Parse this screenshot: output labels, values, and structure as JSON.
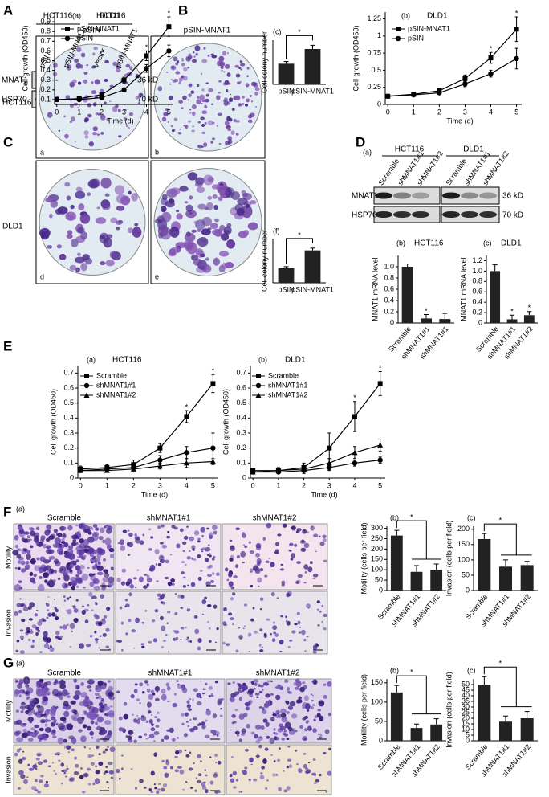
{
  "figure": {
    "panel_letters": [
      "A",
      "B",
      "C",
      "D",
      "E",
      "F",
      "G"
    ],
    "blot_a": {
      "groups": [
        "HCT116",
        "DLD1"
      ],
      "lanes": [
        "pSIN",
        "pSIN-MNAT1",
        "Vector",
        "pSIN-MNAT1"
      ],
      "rows": [
        "MNAT1",
        "HSP70"
      ],
      "sizes": [
        "36 kD",
        "70 kD"
      ]
    },
    "colony": {
      "columns": [
        "pSIN",
        "pSIN-MNAT1"
      ],
      "rows": [
        "HCT116",
        "DLD1"
      ],
      "plate_labels": [
        "a",
        "b",
        "d",
        "e"
      ]
    },
    "blot_d": {
      "label": "(a)",
      "groups": [
        "HCT116",
        "DLD1"
      ],
      "lanes": [
        "Scramble",
        "shMNAT1#1",
        "shMNAT1#2",
        "Scramble",
        "shMNAT1#1",
        "shMNAT1#2"
      ],
      "rows": [
        "MNAT1",
        "HSP70"
      ],
      "sizes": [
        "36 kD",
        "70 kD"
      ]
    },
    "micro_f": {
      "label": "(a)",
      "columns": [
        "Scramble",
        "shMNAT1#1",
        "shMNAT1#2"
      ],
      "rows": [
        "Motility",
        "Invasion"
      ]
    },
    "micro_g": {
      "label": "(a)",
      "columns": [
        "Scramble",
        "shMNAT1#1",
        "shMNAT1#2"
      ],
      "rows": [
        "Motility",
        "Invasion"
      ]
    }
  },
  "chart_data": [
    {
      "type": "line",
      "title": "(a)",
      "subtitle": "HCT116",
      "xlabel": "Time (d)",
      "ylabel": "Cell growth (OD450)",
      "x": [
        0,
        1,
        2,
        3,
        4,
        5
      ],
      "xlim": [
        -0.1,
        5.2
      ],
      "xticks": [
        0,
        1,
        2,
        3,
        4,
        5
      ],
      "ylim": [
        0.05,
        1.0
      ],
      "yticks": [
        0.1,
        0.2,
        0.3,
        0.4,
        0.5,
        0.6,
        0.7,
        0.8,
        0.9
      ],
      "series": [
        {
          "name": "pSIN-MNAT1",
          "color": "#000000",
          "marker": "square",
          "values": [
            0.1,
            0.11,
            0.15,
            0.3,
            0.55,
            0.85
          ],
          "errors": [
            0.01,
            0.02,
            0.02,
            0.03,
            0.05,
            0.1
          ]
        },
        {
          "name": "pSIN",
          "color": "#000000",
          "marker": "circle",
          "values": [
            0.1,
            0.1,
            0.12,
            0.2,
            0.42,
            0.6
          ],
          "errors": [
            0.01,
            0.01,
            0.02,
            0.02,
            0.04,
            0.06
          ]
        }
      ],
      "annotations": [
        "*",
        "*"
      ]
    },
    {
      "type": "line",
      "title": "(b)",
      "subtitle": "DLD1",
      "xlabel": "Time (d)",
      "ylabel": "Cell growth (OD450)",
      "x": [
        0,
        1,
        2,
        3,
        4,
        5
      ],
      "xlim": [
        -0.1,
        5.2
      ],
      "xticks": [
        0,
        1,
        2,
        3,
        4,
        5
      ],
      "ylim": [
        0,
        1.35
      ],
      "yticks": [
        0,
        0.25,
        0.5,
        0.75,
        1,
        1.25
      ],
      "series": [
        {
          "name": "pSIN-MNAT1",
          "color": "#000000",
          "marker": "square",
          "values": [
            0.12,
            0.15,
            0.2,
            0.38,
            0.68,
            1.1
          ],
          "errors": [
            0.02,
            0.02,
            0.03,
            0.05,
            0.08,
            0.18
          ]
        },
        {
          "name": "pSIN",
          "color": "#000000",
          "marker": "circle",
          "values": [
            0.12,
            0.14,
            0.17,
            0.3,
            0.45,
            0.67
          ],
          "errors": [
            0.02,
            0.02,
            0.02,
            0.04,
            0.05,
            0.15
          ]
        }
      ],
      "annotations": [
        "*",
        "*"
      ]
    },
    {
      "type": "bar",
      "title": "(c)",
      "ylabel": "Cell colony number",
      "categories": [
        "pSIN",
        "pSIN-MNAT1"
      ],
      "values": [
        28,
        48
      ],
      "errors": [
        3,
        5
      ],
      "color": "#222222",
      "ylim": [
        0,
        60
      ],
      "yticks": [],
      "annotations": [
        "*"
      ]
    },
    {
      "type": "bar",
      "title": "(f)",
      "ylabel": "Cell colony number",
      "categories": [
        "pSIN",
        "pSIN-MNAT1"
      ],
      "values": [
        20,
        44
      ],
      "errors": [
        2,
        3
      ],
      "color": "#222222",
      "ylim": [
        0,
        60
      ],
      "yticks": [],
      "annotations": [
        "*"
      ]
    },
    {
      "type": "bar",
      "title": "(b)",
      "subtitle": "HCT116",
      "ylabel": "MNAT1 mRNA level",
      "categories": [
        "Scramble",
        "shMNAT1#1",
        "shMNAT1#1"
      ],
      "values": [
        1.0,
        0.08,
        0.07
      ],
      "errors": [
        0.05,
        0.07,
        0.1
      ],
      "color": "#222222",
      "ylim": [
        0,
        1.2
      ],
      "yticks": [
        0,
        0.2,
        0.4,
        0.6,
        0.8,
        {
          "value": 1,
          "label": "1.0"
        }
      ],
      "annotations": [
        "*"
      ]
    },
    {
      "type": "bar",
      "title": "(c)",
      "subtitle": "DLD1",
      "ylabel": "MNAT1 mRNA level",
      "categories": [
        "Scramble",
        "shMNAT1#1",
        "shMNAT1#2"
      ],
      "values": [
        1.0,
        0.07,
        0.15
      ],
      "errors": [
        0.12,
        0.08,
        0.07
      ],
      "color": "#222222",
      "ylim": [
        0,
        1.3
      ],
      "yticks": [
        0,
        0.2,
        0.4,
        0.6,
        0.8,
        {
          "value": 1,
          "label": "1.0"
        },
        1.2
      ],
      "annotations": [
        "*",
        "*"
      ]
    },
    {
      "type": "line",
      "title": "(a)",
      "subtitle": "HCT116",
      "xlabel": "Time (d)",
      "ylabel": "Cell growth (OD450)",
      "x": [
        0,
        1,
        2,
        3,
        4,
        5
      ],
      "xlim": [
        -0.1,
        5.2
      ],
      "xticks": [
        0,
        1,
        2,
        3,
        4,
        5
      ],
      "ylim": [
        0,
        0.75
      ],
      "yticks": [
        0,
        0.1,
        0.2,
        0.3,
        0.4,
        0.5,
        0.6,
        0.7
      ],
      "series": [
        {
          "name": "Scramble",
          "color": "#000000",
          "marker": "square",
          "values": [
            0.06,
            0.07,
            0.09,
            0.2,
            0.41,
            0.63
          ],
          "errors": [
            0.02,
            0.02,
            0.03,
            0.03,
            0.04,
            0.06
          ]
        },
        {
          "name": "shMNAT1#1",
          "color": "#000000",
          "marker": "circle",
          "values": [
            0.05,
            0.06,
            0.07,
            0.12,
            0.17,
            0.2
          ],
          "errors": [
            0.01,
            0.02,
            0.03,
            0.03,
            0.04,
            0.1
          ]
        },
        {
          "name": "shMNAT1#2",
          "color": "#000000",
          "marker": "triangle",
          "values": [
            0.05,
            0.05,
            0.06,
            0.08,
            0.1,
            0.11
          ],
          "errors": [
            0.01,
            0.01,
            0.02,
            0.02,
            0.03,
            0.02
          ]
        }
      ],
      "annotations": [
        "*",
        "*"
      ]
    },
    {
      "type": "line",
      "title": "(b)",
      "subtitle": "DLD1",
      "xlabel": "Time (d)",
      "ylabel": "Cell growth (OD450)",
      "x": [
        0,
        1,
        2,
        3,
        4,
        5
      ],
      "xlim": [
        -0.1,
        5.2
      ],
      "xticks": [
        0,
        1,
        2,
        3,
        4,
        5
      ],
      "ylim": [
        0,
        0.75
      ],
      "yticks": [
        0,
        0.1,
        0.2,
        0.3,
        0.4,
        0.5,
        0.6,
        0.7
      ],
      "series": [
        {
          "name": "Scramble",
          "color": "#000000",
          "marker": "square",
          "values": [
            0.05,
            0.05,
            0.07,
            0.2,
            0.41,
            0.63
          ],
          "errors": [
            0.01,
            0.02,
            0.03,
            0.1,
            0.1,
            0.08
          ]
        },
        {
          "name": "shMNAT1#1",
          "color": "#000000",
          "marker": "circle",
          "values": [
            0.04,
            0.04,
            0.05,
            0.07,
            0.1,
            0.12
          ],
          "errors": [
            0.01,
            0.01,
            0.02,
            0.02,
            0.02,
            0.02
          ]
        },
        {
          "name": "shMNAT1#2",
          "color": "#000000",
          "marker": "triangle",
          "values": [
            0.04,
            0.05,
            0.06,
            0.1,
            0.17,
            0.22
          ],
          "errors": [
            0.01,
            0.01,
            0.02,
            0.03,
            0.04,
            0.04
          ]
        }
      ],
      "annotations": [
        "*",
        "*"
      ]
    },
    {
      "type": "bar",
      "title": "(b)",
      "ylabel": "Motility (cells per field)",
      "categories": [
        "Scramble",
        "shMNAT1#1",
        "shMNAT1#2"
      ],
      "values": [
        265,
        90,
        100
      ],
      "errors": [
        25,
        30,
        28
      ],
      "color": "#222222",
      "ylim": [
        0,
        310
      ],
      "yticks": [
        0,
        50,
        100,
        150,
        200,
        250,
        300
      ],
      "annotations": [
        "*"
      ]
    },
    {
      "type": "bar",
      "title": "(c)",
      "ylabel": "Invasion (cells per field)",
      "categories": [
        "Scramble",
        "shMNAT1#1",
        "shMNAT1#2"
      ],
      "values": [
        168,
        78,
        83
      ],
      "errors": [
        18,
        22,
        12
      ],
      "color": "#222222",
      "ylim": [
        0,
        210
      ],
      "yticks": [
        0,
        50,
        100,
        150,
        200
      ],
      "annotations": [
        "*"
      ]
    },
    {
      "type": "bar",
      "title": "(b)",
      "ylabel": "Motility (cells per field)",
      "categories": [
        "Scramble",
        "shMNAT1#1",
        "shMNAT1#2"
      ],
      "values": [
        125,
        33,
        42
      ],
      "errors": [
        18,
        10,
        15
      ],
      "color": "#222222",
      "ylim": [
        0,
        160
      ],
      "yticks": [
        0,
        50,
        100,
        150
      ],
      "annotations": [
        "*"
      ]
    },
    {
      "type": "bar",
      "title": "(c)",
      "ylabel": "Invasion (cells per field)",
      "categories": [
        "Scramble",
        "shMNAT1#1",
        "shMNAT1#2"
      ],
      "values": [
        50,
        17,
        20
      ],
      "errors": [
        7,
        5,
        6
      ],
      "color": "#222222",
      "ylim": [
        0,
        55
      ],
      "yticks": [
        0,
        5,
        10,
        15,
        20,
        25,
        30,
        35,
        40,
        45,
        50
      ],
      "annotations": [
        "*"
      ]
    }
  ]
}
